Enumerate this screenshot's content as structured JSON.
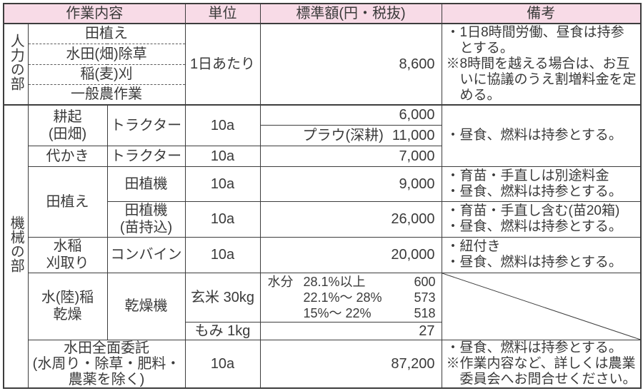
{
  "header": {
    "work": "作業内容",
    "unit": "単位",
    "price": "標準額(円・税抜)",
    "notes": "備考"
  },
  "jinriki": {
    "label": "人力の部",
    "items": [
      "田植え",
      "水田(畑)除草",
      "稲(麦)刈",
      "一般農作業"
    ],
    "unit": "1日あたり",
    "price": "8,600",
    "notes": [
      "・1日8時間労働、昼食は持参\nとする。",
      "※8時間を越える場合は、お互\nいに協議のうえ割増料金を定\nめる。"
    ]
  },
  "kikai": {
    "label": "機械の部",
    "rows": {
      "kouki": {
        "work": "耕起\n(田畑)",
        "machine": "トラクター",
        "unit": "10a",
        "price_a": "6,000",
        "price_b_label": "プラウ(深耕)",
        "price_b_value": "11,000",
        "notes": [
          "・昼食、燃料は持参とする。"
        ]
      },
      "shirokaki": {
        "work": "代かき",
        "machine": "トラクター",
        "unit": "10a",
        "price": "7,000"
      },
      "taue": {
        "work": "田植え"
      },
      "taueki": {
        "machine": "田植機",
        "unit": "10a",
        "price": "9,000",
        "notes": [
          "・育苗・手直しは別途料金",
          "・昼食、燃料は持参とする。"
        ]
      },
      "taueki_nae": {
        "machine": "田植機\n(苗持込)",
        "unit": "10a",
        "price": "26,000",
        "notes": [
          "・育苗・手直し含む(苗20箱)",
          "・昼食、燃料は持参とする。"
        ]
      },
      "karitori": {
        "work": "水稲\n刈取り",
        "machine": "コンバイン",
        "unit": "10a",
        "price": "20,000",
        "notes": [
          "・紐付き",
          "・昼食、燃料は持参とする。"
        ]
      },
      "kansou": {
        "work": "水(陸)稲\n乾燥",
        "machine": "乾燥機",
        "genmai": {
          "unit": "玄米 30kg",
          "label": "水分",
          "lines": [
            {
              "range": "28.1%以上",
              "value": "600"
            },
            {
              "range": "22.1%〜 28%",
              "value": "573"
            },
            {
              "range": "15%〜 22%",
              "value": "518"
            }
          ]
        },
        "momi": {
          "unit": "もみ 1kg",
          "price": "27"
        }
      },
      "itaku": {
        "work": "水田全面委託\n(水周り・除草・肥料・\n農薬を除く)",
        "unit": "10a",
        "price": "87,200",
        "notes": [
          "・昼食、燃料は持参とする。",
          "※作業内容など、詳しくは農業\n委員会へお問合せください。"
        ]
      }
    }
  }
}
